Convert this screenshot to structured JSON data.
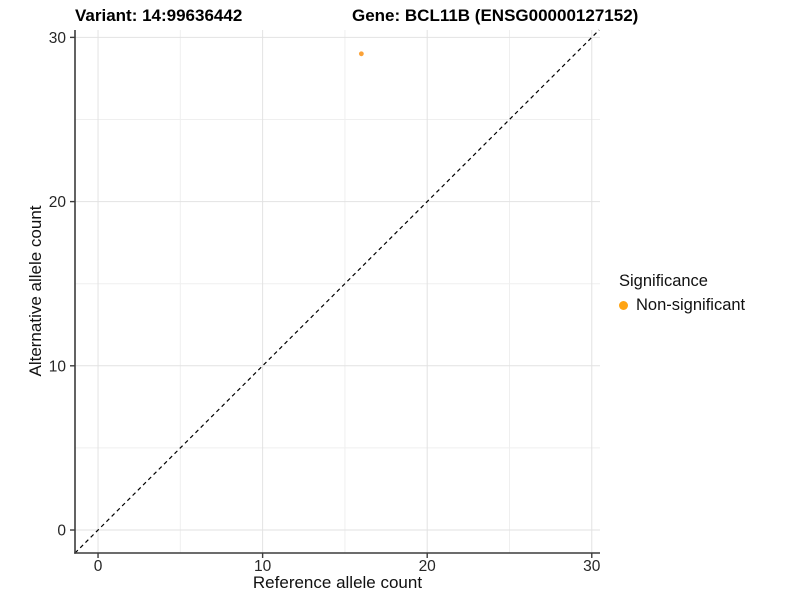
{
  "titles": {
    "variant": "Variant: 14:99636442",
    "gene": "Gene: BCL11B (ENSG00000127152)"
  },
  "chart_data": {
    "type": "scatter",
    "title": "Variant: 14:99636442   Gene: BCL11B (ENSG00000127152)",
    "xlabel": "Reference allele count",
    "ylabel": "Alternative allele count",
    "xlim": [
      -1.4,
      30.5
    ],
    "ylim": [
      -1.4,
      30.45
    ],
    "x_ticks": [
      0,
      10,
      20,
      30
    ],
    "y_ticks": [
      0,
      10,
      20,
      30
    ],
    "x_minor_gridlines": [
      5,
      15,
      25
    ],
    "y_minor_gridlines": [
      5,
      15,
      25
    ],
    "grid": "major and minor, light gray, white panel background",
    "identity_line": {
      "equation": "y = x",
      "style": "dashed",
      "color": "#000000"
    },
    "series": [
      {
        "name": "Non-significant",
        "color": "#FBA238",
        "points": [
          {
            "x": 16,
            "y": 29
          }
        ]
      }
    ],
    "legend": {
      "title": "Significance",
      "position": "right",
      "entries": [
        "Non-significant"
      ]
    }
  },
  "style": {
    "grid_major_color": "#E2E2E2",
    "grid_minor_color": "#EFEFEF",
    "axis_line_color": "#3C3C3C",
    "tick_label_color": "#262626",
    "point_radius": 2.4,
    "legend_dot_color": "#FFA413"
  }
}
